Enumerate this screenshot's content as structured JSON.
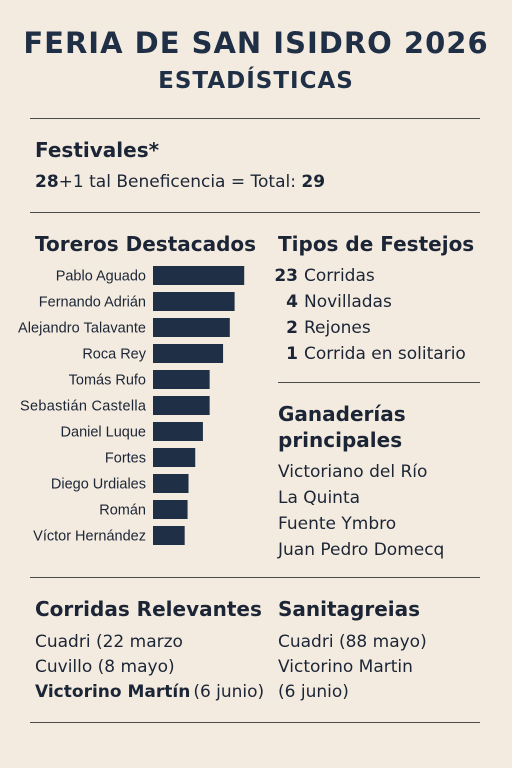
{
  "header": {
    "title": "FERIA DE SAN ISIDRO 2026",
    "subtitle": "ESTADÍSTICAS"
  },
  "festivales": {
    "heading": "Festivales*",
    "line_a": "28",
    "line_b": "+1",
    "line_c": " tal Beneficencia = Total: ",
    "line_d": "29"
  },
  "toreros": {
    "heading": "Toreros Destacados"
  },
  "chart_data": {
    "type": "bar",
    "orientation": "horizontal",
    "title": "Toreros Destacados",
    "categories": [
      "Pablo Aguado",
      "Fernando Adrián",
      "Alejandro Talavante",
      "Roca Rey",
      "Tomás Rufo",
      "Sebastián Castella",
      "Daniel Luque",
      "Fortes",
      "Diego Urdiales",
      "Román",
      "Víctor Hernández"
    ],
    "values": [
      9.5,
      8.5,
      8.0,
      7.3,
      5.9,
      5.9,
      5.2,
      4.4,
      3.7,
      3.6,
      3.3
    ],
    "xlim": [
      0,
      10
    ],
    "grid": false,
    "bar_color": "#1f2f45"
  },
  "tipos": {
    "heading": "Tipos de Festejos",
    "items": [
      {
        "num": "23",
        "label": "Corridas"
      },
      {
        "num": "4",
        "label": "Novilladas"
      },
      {
        "num": "2",
        "label": "Rejones"
      },
      {
        "num": "1",
        "label": "Corrida en solitario"
      }
    ]
  },
  "ganaderias": {
    "heading_1": "Ganaderías",
    "heading_2": "principales",
    "items": [
      "Victoriano del Río",
      "La Quinta",
      "Fuente Ymbro",
      "Juan Pedro Domecq"
    ]
  },
  "corridas": {
    "heading": "Corridas Relevantes",
    "items": [
      {
        "text": "Cuadri (22 marzo",
        "bold": ""
      },
      {
        "text": "Cuvillo (8 mayo)",
        "bold": ""
      },
      {
        "bold": "Victorino Martín",
        "text": "(6 junio)"
      }
    ]
  },
  "sanitagreias": {
    "heading": "Sanitagreias",
    "items": [
      "Cuadri (88 mayo)",
      "Victorino Martin",
      "(6 junio)"
    ]
  }
}
